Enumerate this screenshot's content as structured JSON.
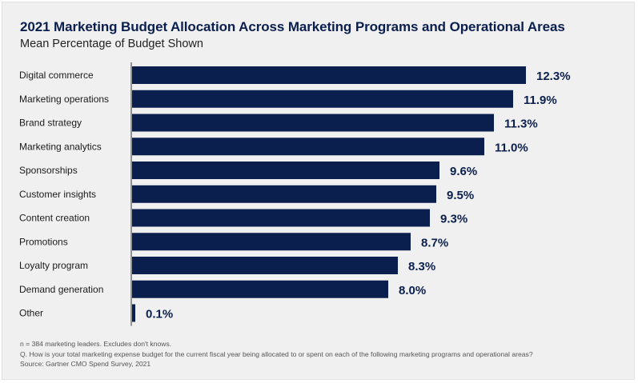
{
  "chart_data": {
    "type": "bar",
    "orientation": "horizontal",
    "title": "2021 Marketing Budget Allocation Across Marketing Programs and Operational Areas",
    "subtitle": "Mean Percentage of Budget Shown",
    "categories": [
      "Digital commerce",
      "Marketing operations",
      "Brand strategy",
      "Marketing analytics",
      "Sponsorships",
      "Customer insights",
      "Content creation",
      "Promotions",
      "Loyalty program",
      "Demand generation",
      "Other"
    ],
    "values": [
      12.3,
      11.9,
      11.3,
      11.0,
      9.6,
      9.5,
      9.3,
      8.7,
      8.3,
      8.0,
      0.1
    ],
    "value_labels": [
      "12.3%",
      "11.9%",
      "11.3%",
      "11.0%",
      "9.6%",
      "9.5%",
      "9.3%",
      "8.7%",
      "8.3%",
      "8.0%",
      "0.1%"
    ],
    "xlim": [
      0,
      12.3
    ],
    "bar_color": "#0b1f4e",
    "grid": false,
    "legend": "none"
  },
  "notes": {
    "n": "n = 384 marketing leaders. Excludes don't knows.",
    "question": "Q. How is your total marketing expense budget for the current fiscal year being allocated to or spent on each of the following marketing programs and operational areas?",
    "source": "Source: Gartner CMO Spend Survey, 2021"
  }
}
